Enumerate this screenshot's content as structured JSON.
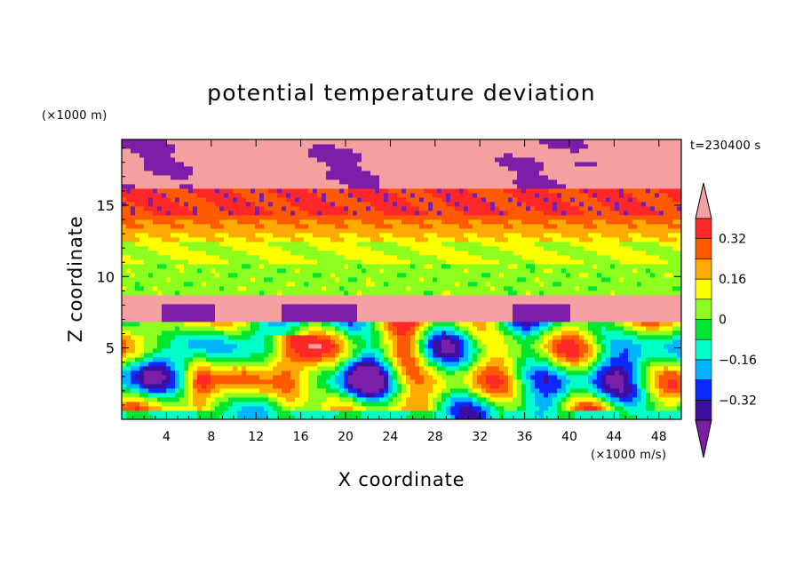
{
  "chart_data": {
    "type": "heatmap",
    "title": "potential temperature deviation",
    "xlabel": "X coordinate",
    "ylabel": "Z coordinate",
    "x_units": "(×1000 m/s)",
    "y_units": "(×1000 m)",
    "time_label": "t=230400 s",
    "xlim": [
      0,
      50
    ],
    "ylim": [
      0,
      19.6
    ],
    "x_ticks": [
      4,
      8,
      12,
      16,
      20,
      24,
      28,
      32,
      36,
      40,
      44,
      48
    ],
    "y_ticks": [
      5,
      10,
      15
    ],
    "colorbar": {
      "levels": [
        -0.4,
        -0.32,
        -0.24,
        -0.16,
        -0.08,
        0,
        0.08,
        0.16,
        0.24,
        0.32,
        0.4
      ],
      "labeled": [
        0.32,
        0.16,
        0,
        -0.16,
        -0.32
      ],
      "labels": [
        "0.32",
        "0.16",
        "0",
        "−0.16",
        "−0.32"
      ],
      "extend": "both",
      "colors": [
        "#7d1ea8",
        "#3c0fa0",
        "#0a28ff",
        "#00b4ff",
        "#00ffc8",
        "#00e632",
        "#8cff1e",
        "#ffff00",
        "#ffaa00",
        "#ff5a00",
        "#ff2828",
        "#f5a0a0"
      ]
    },
    "bands": [
      {
        "z": [
          16.3,
          19.6
        ],
        "value": 0.5,
        "note": "upper layer, mostly positive with negative patches"
      },
      {
        "z": [
          14.2,
          16.3
        ],
        "value": 0.3
      },
      {
        "z": [
          12.3,
          14.2
        ],
        "value": 0.2
      },
      {
        "z": [
          8.8,
          12.3
        ],
        "value": 0.04
      },
      {
        "z": [
          8.1,
          8.8
        ],
        "value": 0.5
      },
      {
        "z": [
          0,
          6.8
        ],
        "value": 0.0,
        "note": "turbulent eddies, values from -0.4 to 0.45"
      }
    ]
  }
}
